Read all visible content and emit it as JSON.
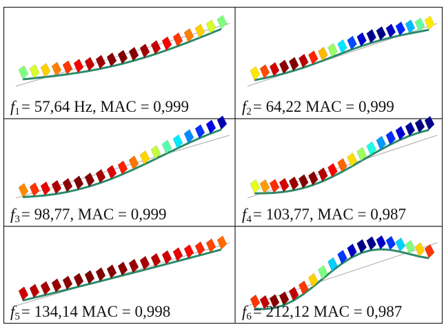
{
  "cells": [
    {
      "symbol": "f",
      "index": "1",
      "text": "= 57,64 Hz, MAC = 0,999"
    },
    {
      "symbol": "f",
      "index": "2",
      "text": "= 64,22 MAC = 0,999"
    },
    {
      "symbol": "f",
      "index": "3",
      "text": "= 98,77, MAC = 0,999"
    },
    {
      "symbol": "f",
      "index": "4",
      "text": "= 103,77, MAC = 0,987"
    },
    {
      "symbol": "f",
      "index": "5",
      "text": "= 134,14 MAC = 0,998"
    },
    {
      "symbol": "f",
      "index": "6",
      "text": "= 212,12 MAC = 0,987"
    }
  ]
}
